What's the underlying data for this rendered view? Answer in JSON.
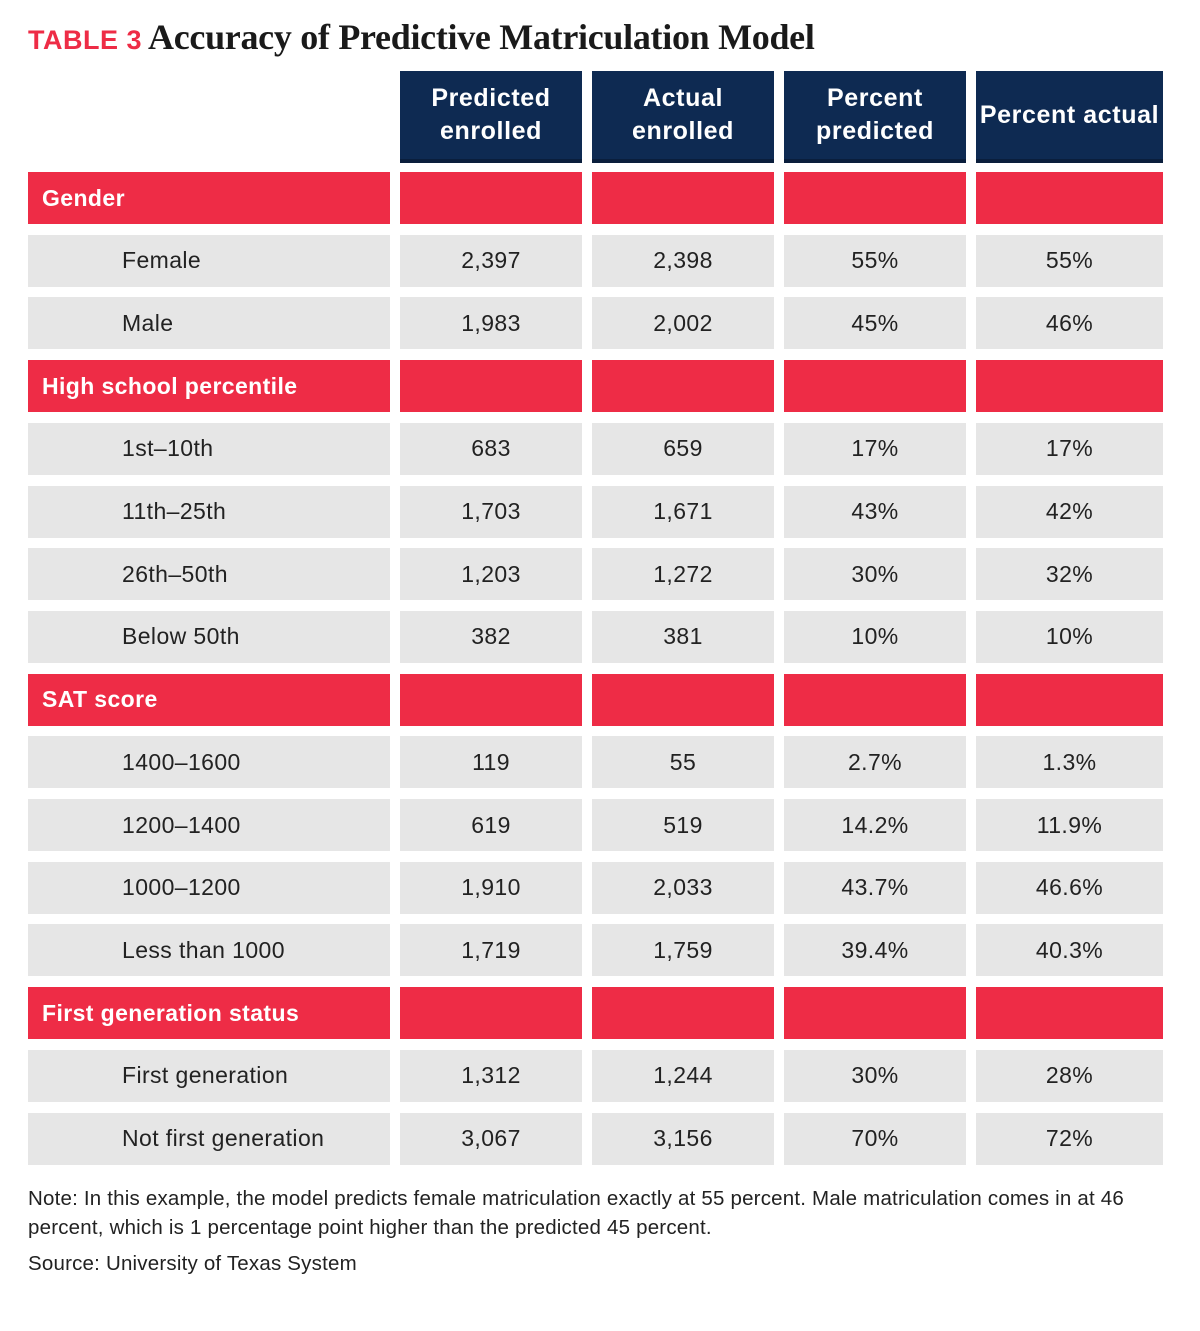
{
  "title": {
    "label": "TABLE 3",
    "text": "Accuracy of Predictive Matriculation Model"
  },
  "colors": {
    "header_bg": "#0e2a52",
    "section_bg": "#ee2c46",
    "row_bg": "#e6e6e6",
    "label_red": "#ee2c46"
  },
  "chart_data": {
    "type": "table",
    "columns": [
      "",
      "Predicted enrolled",
      "Actual enrolled",
      "Percent predicted",
      "Percent actual"
    ],
    "groups": [
      {
        "name": "Gender",
        "rows": [
          {
            "label": "Female",
            "values": [
              "2,397",
              "2,398",
              "55%",
              "55%"
            ]
          },
          {
            "label": "Male",
            "values": [
              "1,983",
              "2,002",
              "45%",
              "46%"
            ]
          }
        ]
      },
      {
        "name": "High school percentile",
        "rows": [
          {
            "label": "1st–10th",
            "values": [
              "683",
              "659",
              "17%",
              "17%"
            ]
          },
          {
            "label": "11th–25th",
            "values": [
              "1,703",
              "1,671",
              "43%",
              "42%"
            ]
          },
          {
            "label": "26th–50th",
            "values": [
              "1,203",
              "1,272",
              "30%",
              "32%"
            ]
          },
          {
            "label": "Below 50th",
            "values": [
              "382",
              "381",
              "10%",
              "10%"
            ]
          }
        ]
      },
      {
        "name": "SAT score",
        "rows": [
          {
            "label": "1400–1600",
            "values": [
              "119",
              "55",
              "2.7%",
              "1.3%"
            ]
          },
          {
            "label": "1200–1400",
            "values": [
              "619",
              "519",
              "14.2%",
              "11.9%"
            ]
          },
          {
            "label": "1000–1200",
            "values": [
              "1,910",
              "2,033",
              "43.7%",
              "46.6%"
            ]
          },
          {
            "label": "Less than 1000",
            "values": [
              "1,719",
              "1,759",
              "39.4%",
              "40.3%"
            ]
          }
        ]
      },
      {
        "name": "First generation status",
        "rows": [
          {
            "label": "First generation",
            "values": [
              "1,312",
              "1,244",
              "30%",
              "28%"
            ]
          },
          {
            "label": "Not first generation",
            "values": [
              "3,067",
              "3,156",
              "70%",
              "72%"
            ]
          }
        ]
      }
    ]
  },
  "note": "Note: In this example, the model predicts female matriculation exactly at 55 percent. Male matriculation comes in at 46 percent, which is 1 percentage point higher than the predicted 45 percent.",
  "source": "Source: University of Texas System"
}
